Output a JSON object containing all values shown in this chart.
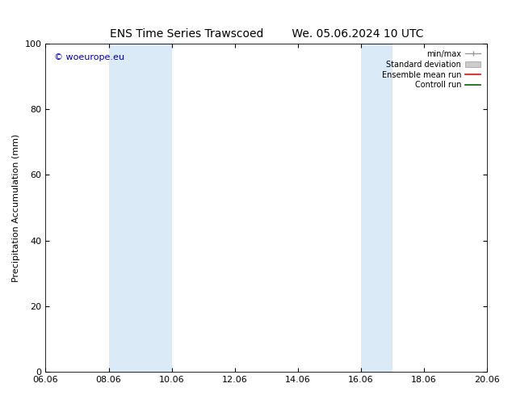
{
  "title_left": "ENS Time Series Trawscoed",
  "title_right": "We. 05.06.2024 10 UTC",
  "ylabel": "Precipitation Accumulation (mm)",
  "ylim": [
    0,
    100
  ],
  "yticks": [
    0,
    20,
    40,
    60,
    80,
    100
  ],
  "x_start": 6.06,
  "x_end": 20.06,
  "xtick_labels": [
    "06.06",
    "08.06",
    "10.06",
    "12.06",
    "14.06",
    "16.06",
    "18.06",
    "20.06"
  ],
  "xtick_values": [
    6.06,
    8.06,
    10.06,
    12.06,
    14.06,
    16.06,
    18.06,
    20.06
  ],
  "shaded_regions": [
    {
      "x_start": 8.06,
      "x_end": 10.06,
      "color": "#dbeaf7"
    },
    {
      "x_start": 16.06,
      "x_end": 17.06,
      "color": "#dbeaf7"
    }
  ],
  "watermark_text": "© woeurope.eu",
  "watermark_color": "#0000cc",
  "bg_color": "#ffffff",
  "title_fontsize": 10,
  "label_fontsize": 8,
  "tick_fontsize": 8,
  "legend_fontsize": 7,
  "watermark_fontsize": 8
}
